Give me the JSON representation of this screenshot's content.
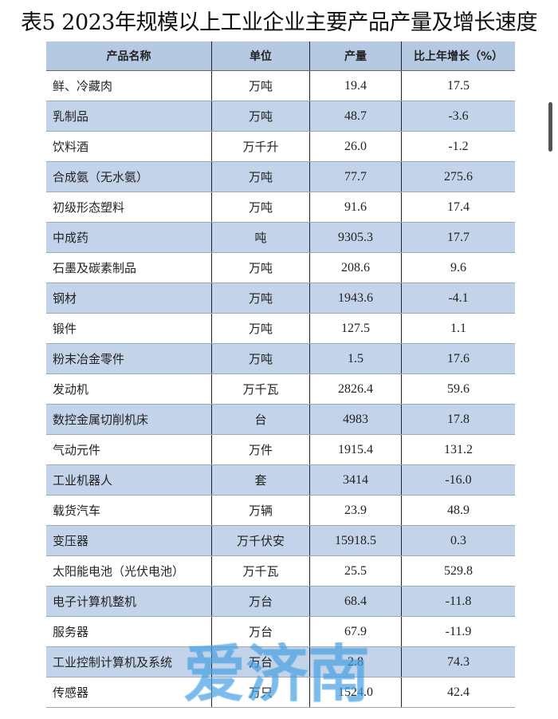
{
  "title": "表5  2023年规模以上工业企业主要产品产量及增长速度",
  "table": {
    "headers": [
      "产品名称",
      "单位",
      "产量",
      "比上年增长（%）"
    ],
    "rows": [
      [
        "鲜、冷藏肉",
        "万吨",
        "19.4",
        "17.5"
      ],
      [
        "乳制品",
        "万吨",
        "48.7",
        "-3.6"
      ],
      [
        "饮料酒",
        "万千升",
        "26.0",
        "-1.2"
      ],
      [
        "合成氨（无水氨）",
        "万吨",
        "77.7",
        "275.6"
      ],
      [
        "初级形态塑料",
        "万吨",
        "91.6",
        "17.4"
      ],
      [
        "中成药",
        "吨",
        "9305.3",
        "17.7"
      ],
      [
        "石墨及碳素制品",
        "万吨",
        "208.6",
        "9.6"
      ],
      [
        "钢材",
        "万吨",
        "1943.6",
        "-4.1"
      ],
      [
        "锻件",
        "万吨",
        "127.5",
        "1.1"
      ],
      [
        "粉末冶金零件",
        "万吨",
        "1.5",
        "17.6"
      ],
      [
        "发动机",
        "万千瓦",
        "2826.4",
        "59.6"
      ],
      [
        "数控金属切削机床",
        "台",
        "4983",
        "17.8"
      ],
      [
        "气动元件",
        "万件",
        "1915.4",
        "131.2"
      ],
      [
        "工业机器人",
        "套",
        "3414",
        "-16.0"
      ],
      [
        "载货汽车",
        "万辆",
        "23.9",
        "48.9"
      ],
      [
        "变压器",
        "万千伏安",
        "15918.5",
        "0.3"
      ],
      [
        "太阳能电池（光伏电池）",
        "万千瓦",
        "25.5",
        "529.8"
      ],
      [
        "电子计算机整机",
        "万台",
        "68.4",
        "-11.8"
      ],
      [
        "服务器",
        "万台",
        "67.9",
        "-11.9"
      ],
      [
        "工业控制计算机及系统",
        "万台",
        "2.8",
        "74.3"
      ],
      [
        "传感器",
        "万只",
        "1524.0",
        "42.4"
      ]
    ]
  },
  "watermark": "爱济南",
  "colors": {
    "header_bg": "#b5c9e3",
    "alt_row_bg": "#c3d4ea",
    "watermark": "#46a0e1"
  }
}
